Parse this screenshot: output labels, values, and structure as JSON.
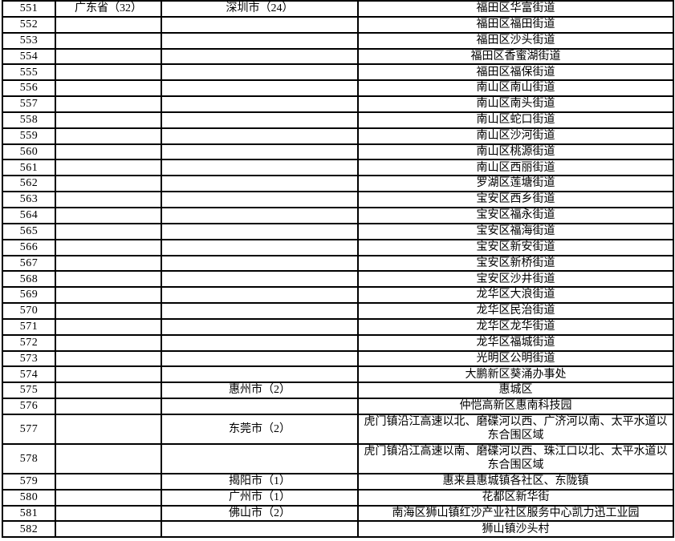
{
  "colors": {
    "border": "#000000",
    "text": "#000000",
    "background": "#ffffff"
  },
  "table": {
    "description_note": "",
    "rows": [
      {
        "no": "551",
        "province": "广东省（32）",
        "city": "深圳市（24）",
        "area": "福田区华富街道"
      },
      {
        "no": "552",
        "province": "",
        "city": "",
        "area": "福田区福田街道"
      },
      {
        "no": "553",
        "province": "",
        "city": "",
        "area": "福田区沙头街道"
      },
      {
        "no": "554",
        "province": "",
        "city": "",
        "area": "福田区香蜜湖街道"
      },
      {
        "no": "555",
        "province": "",
        "city": "",
        "area": "福田区福保街道"
      },
      {
        "no": "556",
        "province": "",
        "city": "",
        "area": "南山区南山街道"
      },
      {
        "no": "557",
        "province": "",
        "city": "",
        "area": "南山区南头街道"
      },
      {
        "no": "558",
        "province": "",
        "city": "",
        "area": "南山区蛇口街道"
      },
      {
        "no": "559",
        "province": "",
        "city": "",
        "area": "南山区沙河街道"
      },
      {
        "no": "560",
        "province": "",
        "city": "",
        "area": "南山区桃源街道"
      },
      {
        "no": "561",
        "province": "",
        "city": "",
        "area": "南山区西丽街道"
      },
      {
        "no": "562",
        "province": "",
        "city": "",
        "area": "罗湖区莲塘街道"
      },
      {
        "no": "563",
        "province": "",
        "city": "",
        "area": "宝安区西乡街道"
      },
      {
        "no": "564",
        "province": "",
        "city": "",
        "area": "宝安区福永街道"
      },
      {
        "no": "565",
        "province": "",
        "city": "",
        "area": "宝安区福海街道"
      },
      {
        "no": "566",
        "province": "",
        "city": "",
        "area": "宝安区新安街道"
      },
      {
        "no": "567",
        "province": "",
        "city": "",
        "area": "宝安区新桥街道"
      },
      {
        "no": "568",
        "province": "",
        "city": "",
        "area": "宝安区沙井街道"
      },
      {
        "no": "569",
        "province": "",
        "city": "",
        "area": "龙华区大浪街道"
      },
      {
        "no": "570",
        "province": "",
        "city": "",
        "area": "龙华区民治街道"
      },
      {
        "no": "571",
        "province": "",
        "city": "",
        "area": "龙华区龙华街道"
      },
      {
        "no": "572",
        "province": "",
        "city": "",
        "area": "龙华区福城街道"
      },
      {
        "no": "573",
        "province": "",
        "city": "",
        "area": "光明区公明街道"
      },
      {
        "no": "574",
        "province": "",
        "city": "",
        "area": "大鹏新区葵涌办事处"
      },
      {
        "no": "575",
        "province": "",
        "city": "惠州市（2）",
        "area": "惠城区"
      },
      {
        "no": "576",
        "province": "",
        "city": "",
        "area": "仲恺高新区惠南科技园"
      },
      {
        "no": "577",
        "province": "",
        "city": "东莞市（2）",
        "area": "虎门镇沿江高速以北、磨碟河以西、广济河以南、太平水道以东合围区域"
      },
      {
        "no": "578",
        "province": "",
        "city": "",
        "area": "虎门镇沿江高速以南、磨碟河以西、珠江口以北、太平水道以东合围区域"
      },
      {
        "no": "579",
        "province": "",
        "city": "揭阳市（1）",
        "area": "惠来县惠城镇各社区、东陇镇"
      },
      {
        "no": "580",
        "province": "",
        "city": "广州市（1）",
        "area": "花都区新华街"
      },
      {
        "no": "581",
        "province": "",
        "city": "佛山市（2）",
        "area": "南海区狮山镇红沙产业社区服务中心凯力迅工业园"
      },
      {
        "no": "582",
        "province": "",
        "city": "",
        "area": "狮山镇沙头村"
      }
    ]
  }
}
